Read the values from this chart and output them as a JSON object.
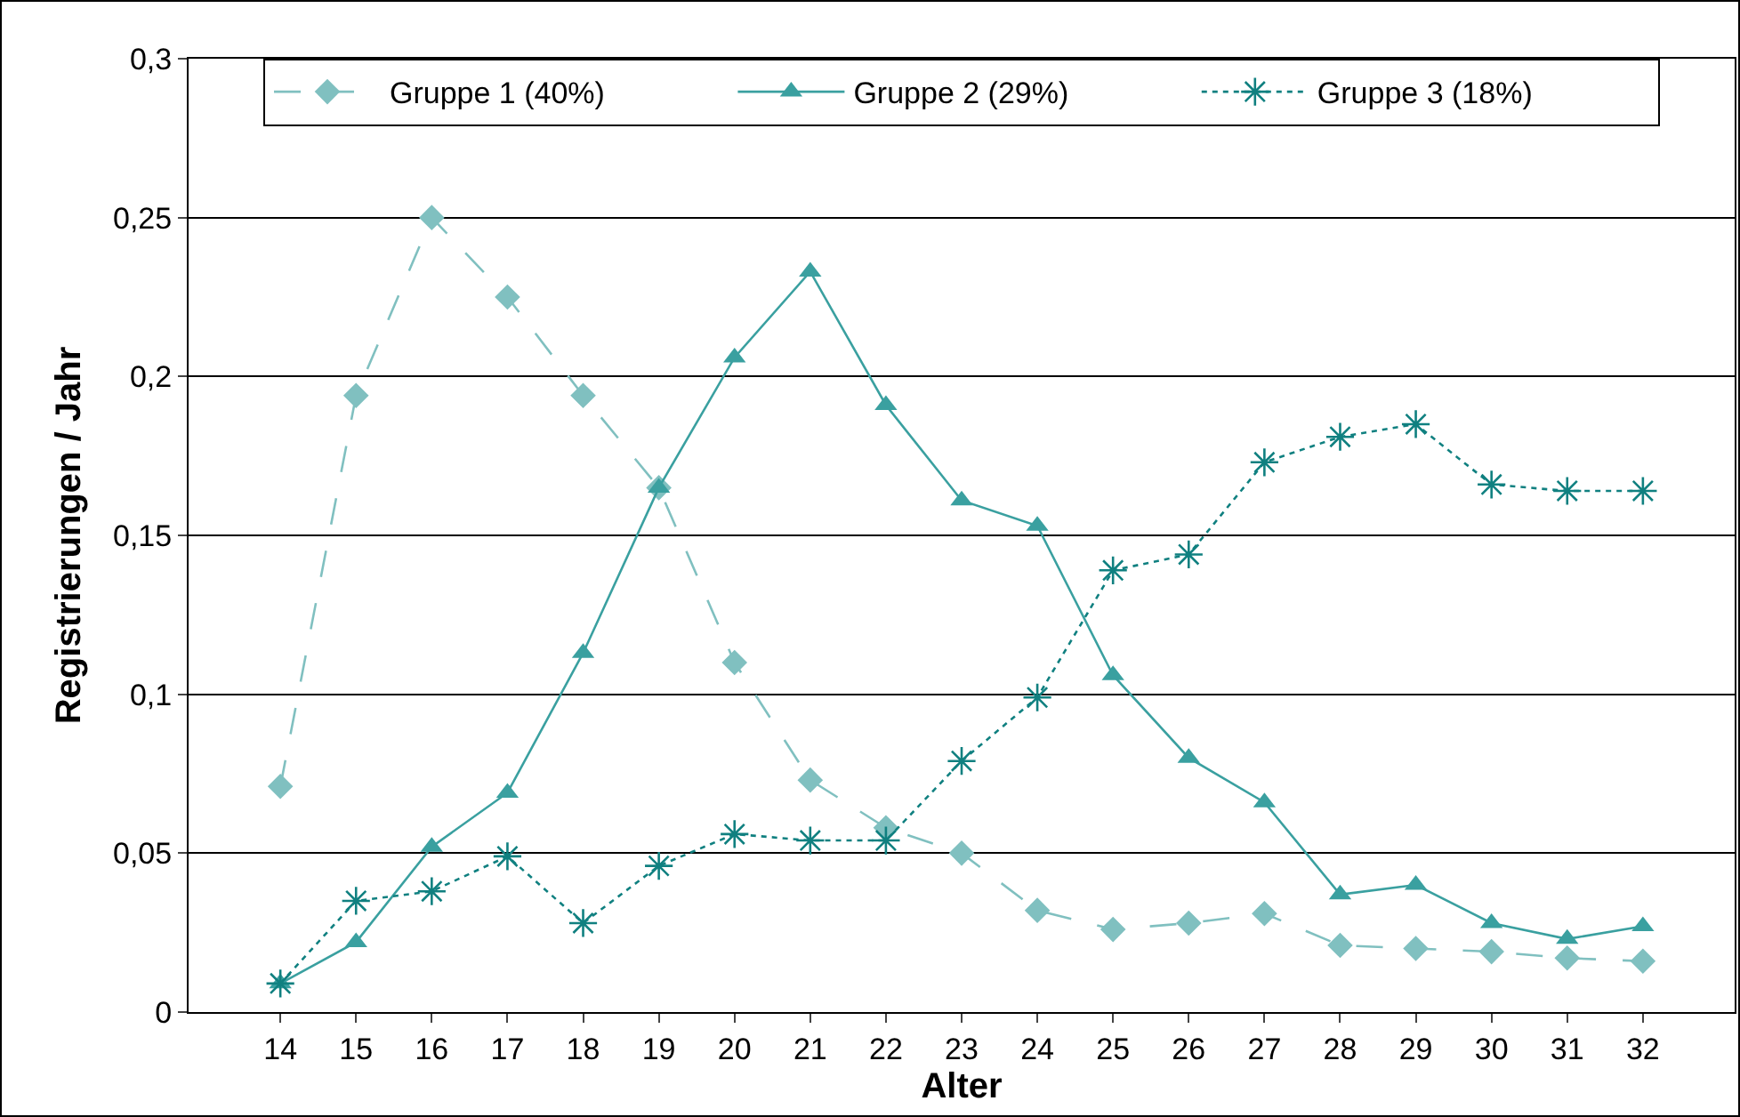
{
  "chart_data": {
    "type": "line",
    "xlabel": "Alter",
    "ylabel": "Registrierungen / Jahr",
    "categories": [
      "14",
      "15",
      "16",
      "17",
      "18",
      "19",
      "20",
      "21",
      "22",
      "23",
      "24",
      "25",
      "26",
      "27",
      "28",
      "29",
      "30",
      "31",
      "32"
    ],
    "series": [
      {
        "name": "Gruppe 1 (40%)",
        "color": "#80c0c0",
        "marker": "diamond",
        "line_style": "dashed",
        "values": [
          0.071,
          0.194,
          0.25,
          0.225,
          0.194,
          0.165,
          0.11,
          0.073,
          0.058,
          0.05,
          0.032,
          0.026,
          0.028,
          0.031,
          0.021,
          0.02,
          0.019,
          0.017,
          0.016
        ]
      },
      {
        "name": "Gruppe 2 (29%)",
        "color": "#3aa0a0",
        "marker": "triangle",
        "line_style": "solid",
        "values": [
          0.009,
          0.022,
          0.052,
          0.069,
          0.113,
          0.165,
          0.206,
          0.233,
          0.191,
          0.161,
          0.153,
          0.106,
          0.08,
          0.066,
          0.037,
          0.04,
          0.028,
          0.023,
          0.027
        ]
      },
      {
        "name": "Gruppe 3 (18%)",
        "color": "#108080",
        "marker": "cross",
        "line_style": "dotted",
        "values": [
          0.009,
          0.035,
          0.038,
          0.049,
          0.028,
          0.046,
          0.056,
          0.054,
          0.054,
          0.079,
          0.099,
          0.139,
          0.144,
          0.173,
          0.181,
          0.185,
          0.166,
          0.164,
          0.164
        ]
      }
    ],
    "ylim": [
      0,
      0.3
    ],
    "yticks": [
      0,
      {
        "value": 0.05,
        "label": "0,05"
      },
      {
        "value": 0.1,
        "label": "0,1"
      },
      {
        "value": 0.15,
        "label": "0,15"
      },
      {
        "value": 0.2,
        "label": "0,2"
      },
      {
        "value": 0.25,
        "label": "0,25"
      },
      {
        "value": 0.3,
        "label": "0,3"
      }
    ],
    "grid": "y",
    "legend": "top"
  }
}
